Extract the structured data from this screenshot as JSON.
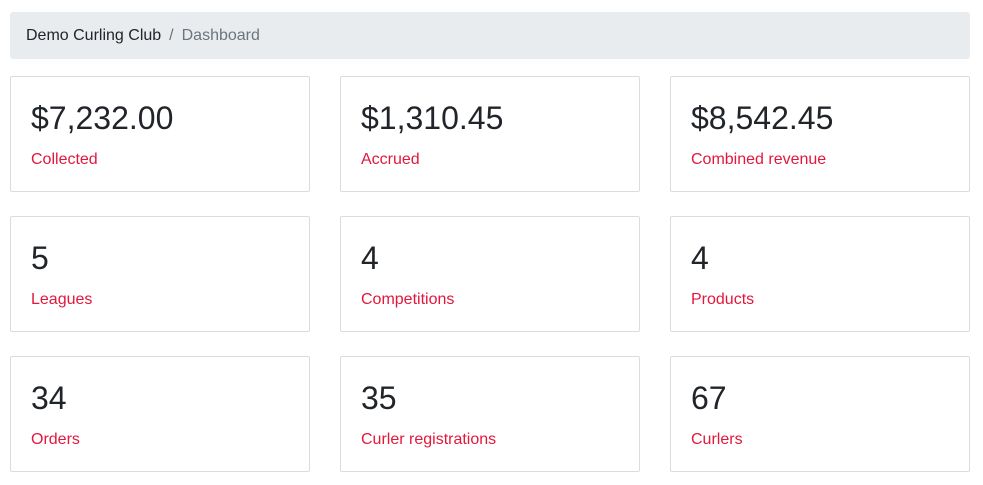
{
  "breadcrumb": {
    "items": [
      "Demo Curling Club",
      "Dashboard"
    ],
    "separator": "/"
  },
  "cards": [
    {
      "value": "$7,232.00",
      "label": "Collected"
    },
    {
      "value": "$1,310.45",
      "label": "Accrued"
    },
    {
      "value": "$8,542.45",
      "label": "Combined revenue"
    },
    {
      "value": "5",
      "label": "Leagues"
    },
    {
      "value": "4",
      "label": "Competitions"
    },
    {
      "value": "4",
      "label": "Products"
    },
    {
      "value": "34",
      "label": "Orders"
    },
    {
      "value": "35",
      "label": "Curler registrations"
    },
    {
      "value": "67",
      "label": "Curlers"
    }
  ]
}
